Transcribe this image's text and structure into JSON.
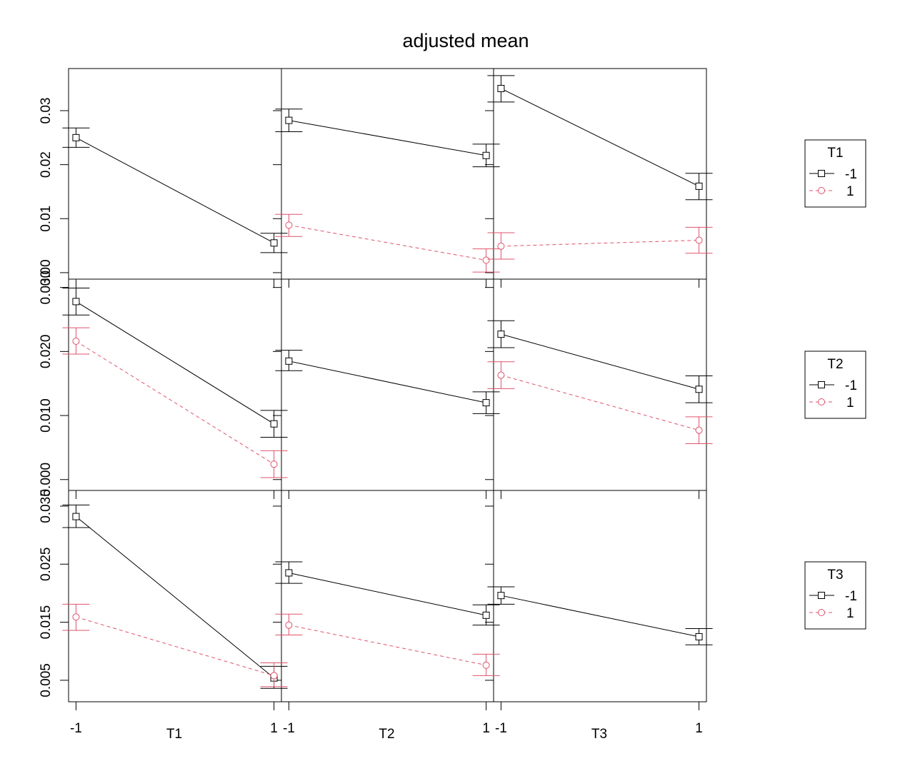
{
  "chart_data": {
    "type": "line",
    "title": "adjusted mean",
    "layout": "3x3 interaction-plot matrix with error bars",
    "colors": {
      "level_neg1": "#000000",
      "level_1": "#DF536B"
    },
    "x_labels": [
      "T1",
      "T2",
      "T3"
    ],
    "x_tick_labels": [
      "-1",
      "1"
    ],
    "rows": [
      {
        "y_ticks": [
          0.0,
          0.01,
          0.02,
          0.03
        ],
        "y_tick_labels": [
          "0.00",
          "0.01",
          "0.02",
          "0.03"
        ],
        "ylim": [
          -0.0012,
          0.0378
        ],
        "legend": {
          "title": "T1",
          "entries": [
            "-1",
            "1"
          ]
        }
      },
      {
        "y_ticks": [
          0.0,
          0.01,
          0.02,
          0.03
        ],
        "y_tick_labels": [
          "0.000",
          "0.010",
          "0.020",
          "0.030"
        ],
        "ylim": [
          -0.0017,
          0.0313
        ],
        "legend": {
          "title": "T2",
          "entries": [
            "-1",
            "1"
          ]
        }
      },
      {
        "y_ticks": [
          0.005,
          0.015,
          0.025,
          0.035
        ],
        "y_tick_labels": [
          "0.005",
          "0.015",
          "0.025",
          "0.035"
        ],
        "ylim": [
          0.0013,
          0.0377
        ],
        "legend": {
          "title": "T3",
          "entries": [
            "-1",
            "1"
          ]
        }
      }
    ],
    "panels": [
      {
        "row": 0,
        "col": 0,
        "series": [
          {
            "level": "-1",
            "x": [
              -1,
              1
            ],
            "y": [
              0.025,
              0.0055
            ],
            "lower": [
              0.0232,
              0.0037
            ],
            "upper": [
              0.0268,
              0.0073
            ]
          }
        ]
      },
      {
        "row": 0,
        "col": 1,
        "series": [
          {
            "level": "-1",
            "x": [
              -1,
              1
            ],
            "y": [
              0.0282,
              0.0217
            ],
            "lower": [
              0.0261,
              0.0196
            ],
            "upper": [
              0.0303,
              0.0238
            ]
          },
          {
            "level": "1",
            "x": [
              -1,
              1
            ],
            "y": [
              0.0088,
              0.0023
            ],
            "lower": [
              0.0067,
              0.0001
            ],
            "upper": [
              0.0108,
              0.0044
            ]
          }
        ]
      },
      {
        "row": 0,
        "col": 2,
        "series": [
          {
            "level": "-1",
            "x": [
              -1,
              1
            ],
            "y": [
              0.0341,
              0.016
            ],
            "lower": [
              0.0316,
              0.0135
            ],
            "upper": [
              0.0365,
              0.0184
            ]
          },
          {
            "level": "1",
            "x": [
              -1,
              1
            ],
            "y": [
              0.0049,
              0.006
            ],
            "lower": [
              0.0025,
              0.0036
            ],
            "upper": [
              0.0074,
              0.0084
            ]
          }
        ]
      },
      {
        "row": 1,
        "col": 0,
        "series": [
          {
            "level": "-1",
            "x": [
              -1,
              1
            ],
            "y": [
              0.0278,
              0.0087
            ],
            "lower": [
              0.0257,
              0.0066
            ],
            "upper": [
              0.0299,
              0.0108
            ]
          },
          {
            "level": "1",
            "x": [
              -1,
              1
            ],
            "y": [
              0.0216,
              0.0024
            ],
            "lower": [
              0.0196,
              0.0003
            ],
            "upper": [
              0.0237,
              0.0045
            ]
          }
        ]
      },
      {
        "row": 1,
        "col": 1,
        "series": [
          {
            "level": "-1",
            "x": [
              -1,
              1
            ],
            "y": [
              0.0185,
              0.012
            ],
            "lower": [
              0.017,
              0.0103
            ],
            "upper": [
              0.0202,
              0.0137
            ]
          }
        ]
      },
      {
        "row": 1,
        "col": 2,
        "series": [
          {
            "level": "-1",
            "x": [
              -1,
              1
            ],
            "y": [
              0.0227,
              0.0141
            ],
            "lower": [
              0.0206,
              0.012
            ],
            "upper": [
              0.0248,
              0.0162
            ]
          },
          {
            "level": "1",
            "x": [
              -1,
              1
            ],
            "y": [
              0.0163,
              0.0077
            ],
            "lower": [
              0.0142,
              0.0056
            ],
            "upper": [
              0.0184,
              0.0098
            ]
          }
        ]
      },
      {
        "row": 2,
        "col": 0,
        "series": [
          {
            "level": "-1",
            "x": [
              -1,
              1
            ],
            "y": [
              0.0332,
              0.0054
            ],
            "lower": [
              0.0313,
              0.0036
            ],
            "upper": [
              0.0352,
              0.0074
            ]
          },
          {
            "level": "1",
            "x": [
              -1,
              1
            ],
            "y": [
              0.0159,
              0.0058
            ],
            "lower": [
              0.0136,
              0.0039
            ],
            "upper": [
              0.0181,
              0.008
            ]
          }
        ]
      },
      {
        "row": 2,
        "col": 1,
        "series": [
          {
            "level": "-1",
            "x": [
              -1,
              1
            ],
            "y": [
              0.0235,
              0.0162
            ],
            "lower": [
              0.0217,
              0.0145
            ],
            "upper": [
              0.0254,
              0.018
            ]
          },
          {
            "level": "1",
            "x": [
              -1,
              1
            ],
            "y": [
              0.0145,
              0.0076
            ],
            "lower": [
              0.0128,
              0.0058
            ],
            "upper": [
              0.0164,
              0.0095
            ]
          }
        ]
      },
      {
        "row": 2,
        "col": 2,
        "series": [
          {
            "level": "-1",
            "x": [
              -1,
              1
            ],
            "y": [
              0.0196,
              0.0125
            ],
            "lower": [
              0.0181,
              0.0111
            ],
            "upper": [
              0.0211,
              0.0139
            ]
          }
        ]
      }
    ]
  }
}
